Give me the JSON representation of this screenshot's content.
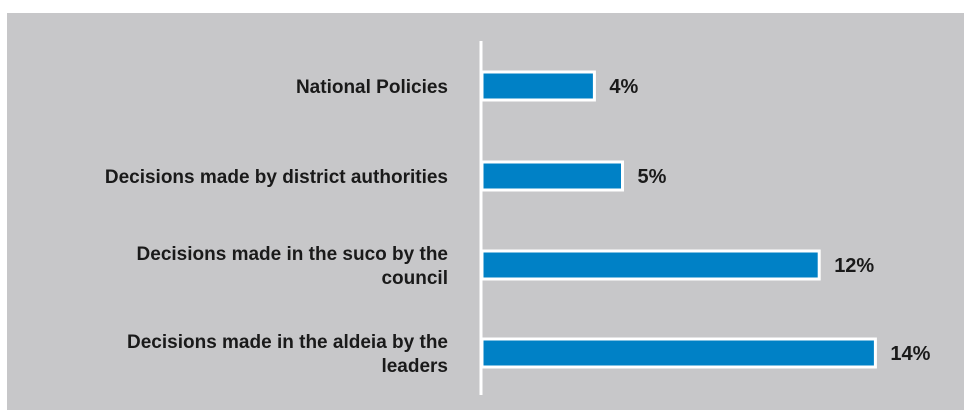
{
  "chart_data": {
    "type": "bar",
    "orientation": "horizontal",
    "categories": [
      [
        "National Policies"
      ],
      [
        "Decisions made by district authorities"
      ],
      [
        "Decisions made in the suco by the",
        "council"
      ],
      [
        "Decisions made in the aldeia by the",
        "leaders"
      ]
    ],
    "values": [
      4,
      5,
      12,
      14
    ],
    "value_labels": [
      "4%",
      "5%",
      "12%",
      "14%"
    ],
    "xlim": [
      0,
      16
    ],
    "grid": false,
    "legend": "none",
    "bar_color": "#0081c6",
    "bar_outline_color": "#ffffff",
    "background_color": "#c7c7c9",
    "axis_color": "#ffffff"
  }
}
